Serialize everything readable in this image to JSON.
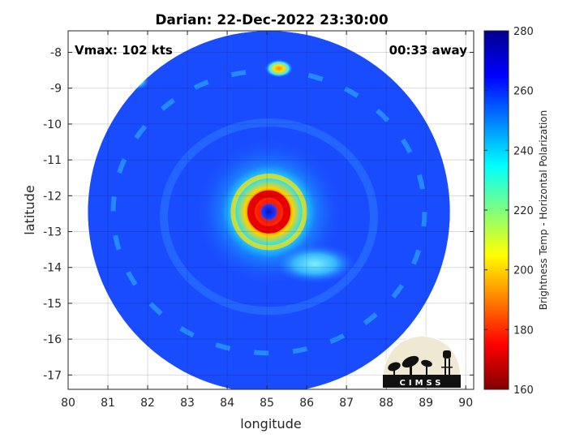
{
  "chart_data": {
    "type": "heatmap",
    "title": "Darian: 22-Dec-2022 23:30:00",
    "xlabel": "longitude",
    "ylabel": "latitude",
    "xlim": [
      80,
      90.2
    ],
    "ylim": [
      -17.4,
      -7.4
    ],
    "x_ticks": [
      80,
      81,
      82,
      83,
      84,
      85,
      86,
      87,
      88,
      89,
      90
    ],
    "y_ticks": [
      -8,
      -9,
      -10,
      -11,
      -12,
      -13,
      -14,
      -15,
      -16,
      -17
    ],
    "grid": true,
    "annotations": {
      "vmax": "Vmax: 102 kts",
      "away": "00:33 away"
    },
    "colorbar": {
      "label": "Brightness Temp - Horizontal Polarization",
      "range": [
        160,
        280
      ],
      "ticks": [
        160,
        180,
        200,
        220,
        240,
        260,
        280
      ],
      "colormap": "jet"
    },
    "swath": {
      "center_lon": 85.05,
      "center_lat": -12.45,
      "radius_deg": 5.05
    },
    "features": [
      {
        "kind": "eye",
        "lon": 85.05,
        "lat": -12.45,
        "value": 262
      },
      {
        "kind": "eyewall",
        "lon": 85.05,
        "lat": -12.45,
        "radius_deg": 0.5,
        "value": 178
      },
      {
        "kind": "inner_ring",
        "lon": 85.05,
        "lat": -12.45,
        "radius_deg": 1.0,
        "value": 225
      },
      {
        "kind": "rainband",
        "lon": 86.2,
        "lat": -13.9,
        "value": 238
      },
      {
        "kind": "cell",
        "lon": 85.3,
        "lat": -8.45,
        "value": 195
      },
      {
        "kind": "cell",
        "lon": 81.7,
        "lat": -8.8,
        "value": 232
      }
    ]
  },
  "logo": {
    "text": "CIMSS"
  }
}
